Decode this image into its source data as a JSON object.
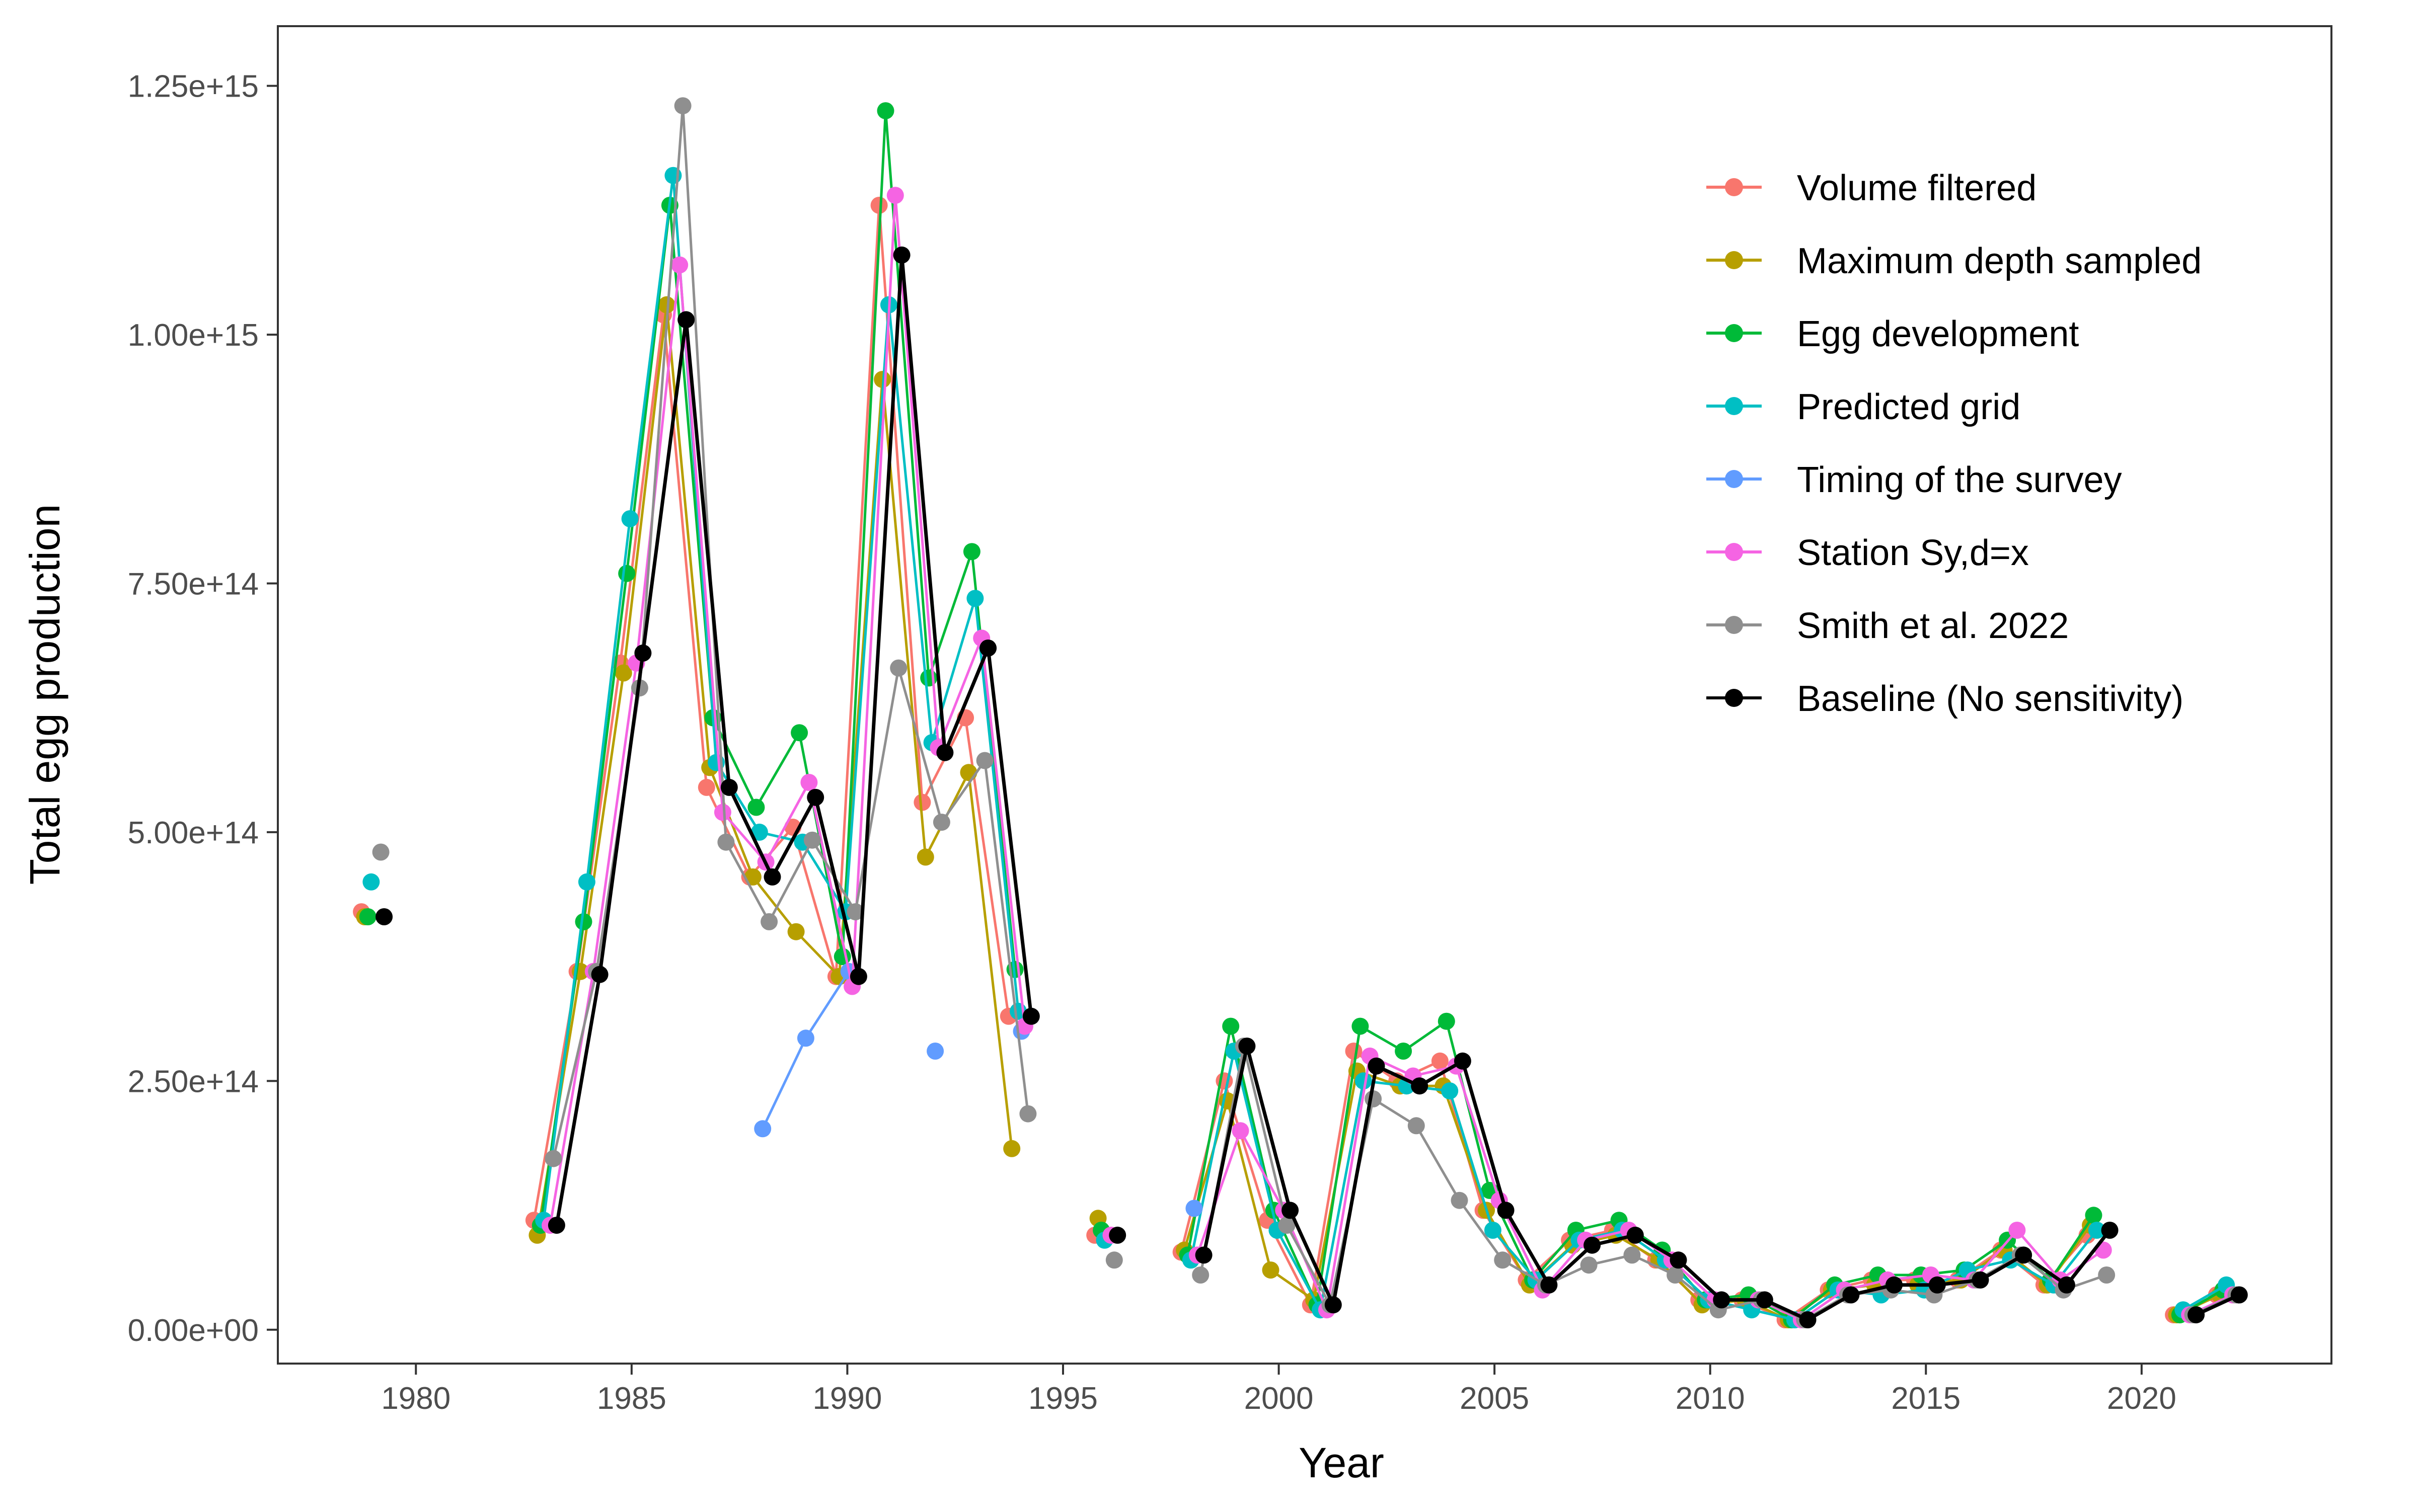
{
  "chart_data": {
    "type": "line",
    "title": "",
    "xlabel": "Year",
    "ylabel": "Total egg production",
    "xlim": [
      1976.8,
      2024.4
    ],
    "ylim": [
      -34000000000000.0,
      1310000000000000.0
    ],
    "x_ticks": [
      1980,
      1985,
      1990,
      1995,
      2000,
      2005,
      2010,
      2015,
      2020
    ],
    "x_tick_labels": [
      "1980",
      "1985",
      "1990",
      "1995",
      "2000",
      "2005",
      "2010",
      "2015",
      "2020"
    ],
    "y_ticks": [
      0,
      250000000000000.0,
      500000000000000.0,
      750000000000000.0,
      1000000000000000.0,
      1250000000000000.0
    ],
    "y_tick_labels": [
      "0.00e+00",
      "2.50e+14",
      "5.00e+14",
      "7.50e+14",
      "1.00e+15",
      "1.25e+15"
    ],
    "grid": false,
    "legend_position": "top-right",
    "years": [
      1979,
      1983,
      1984,
      1985,
      1986,
      1987,
      1988,
      1989,
      1990,
      1991,
      1992,
      1993,
      1994,
      1996,
      1998,
      1999,
      2000,
      2001,
      2002,
      2003,
      2004,
      2005,
      2006,
      2007,
      2008,
      2009,
      2010,
      2011,
      2012,
      2013,
      2014,
      2015,
      2016,
      2017,
      2018,
      2019,
      2021,
      2022
    ],
    "series": [
      {
        "name": "Volume filtered",
        "color": "#F8766D",
        "values": [
          420000000000000.0,
          110000000000000.0,
          360000000000000.0,
          670000000000000.0,
          1020000000000000.0,
          545000000000000.0,
          455000000000000.0,
          505000000000000.0,
          355000000000000.0,
          1130000000000000.0,
          530000000000000.0,
          615000000000000.0,
          315000000000000.0,
          95000000000000.0,
          78000000000000.0,
          250000000000000.0,
          110000000000000.0,
          25000000000000.0,
          280000000000000.0,
          250000000000000.0,
          270000000000000.0,
          120000000000000.0,
          50000000000000.0,
          90000000000000.0,
          100000000000000.0,
          70000000000000.0,
          30000000000000.0,
          30000000000000.0,
          10000000000000.0,
          40000000000000.0,
          50000000000000.0,
          50000000000000.0,
          50000000000000.0,
          80000000000000.0,
          45000000000000.0,
          95000000000000.0,
          15000000000000.0,
          35000000000000.0
        ]
      },
      {
        "name": "Maximum depth sampled",
        "color": "#B79F00",
        "values": [
          415000000000000.0,
          95000000000000.0,
          360000000000000.0,
          660000000000000.0,
          1030000000000000.0,
          565000000000000.0,
          455000000000000.0,
          400000000000000.0,
          355000000000000.0,
          955000000000000.0,
          475000000000000.0,
          560000000000000.0,
          182000000000000.0,
          112000000000000.0,
          80000000000000.0,
          230000000000000.0,
          60000000000000.0,
          30000000000000.0,
          260000000000000.0,
          245000000000000.0,
          245000000000000.0,
          120000000000000.0,
          45000000000000.0,
          85000000000000.0,
          95000000000000.0,
          70000000000000.0,
          25000000000000.0,
          30000000000000.0,
          10000000000000.0,
          40000000000000.0,
          45000000000000.0,
          45000000000000.0,
          50000000000000.0,
          80000000000000.0,
          45000000000000.0,
          105000000000000.0,
          15000000000000.0,
          35000000000000.0
        ]
      },
      {
        "name": "Egg development",
        "color": "#00BA38",
        "values": [
          415000000000000.0,
          105000000000000.0,
          410000000000000.0,
          760000000000000.0,
          1130000000000000.0,
          615000000000000.0,
          525000000000000.0,
          600000000000000.0,
          375000000000000.0,
          1225000000000000.0,
          655000000000000.0,
          782000000000000.0,
          362000000000000.0,
          100000000000000.0,
          75000000000000.0,
          305000000000000.0,
          120000000000000.0,
          25000000000000.0,
          305000000000000.0,
          280000000000000.0,
          310000000000000.0,
          140000000000000.0,
          50000000000000.0,
          100000000000000.0,
          110000000000000.0,
          80000000000000.0,
          30000000000000.0,
          35000000000000.0,
          10000000000000.0,
          45000000000000.0,
          55000000000000.0,
          55000000000000.0,
          60000000000000.0,
          90000000000000.0,
          50000000000000.0,
          115000000000000.0,
          15000000000000.0,
          40000000000000.0
        ]
      },
      {
        "name": "Predicted grid",
        "color": "#00BFC4",
        "values": [
          450000000000000.0,
          110000000000000.0,
          450000000000000.0,
          815000000000000.0,
          1160000000000000.0,
          570000000000000.0,
          500000000000000.0,
          490000000000000.0,
          420000000000000.0,
          1030000000000000.0,
          590000000000000.0,
          735000000000000.0,
          320000000000000.0,
          90000000000000.0,
          70000000000000.0,
          280000000000000.0,
          100000000000000.0,
          20000000000000.0,
          250000000000000.0,
          245000000000000.0,
          240000000000000.0,
          100000000000000.0,
          50000000000000.0,
          90000000000000.0,
          100000000000000.0,
          70000000000000.0,
          30000000000000.0,
          20000000000000.0,
          10000000000000.0,
          40000000000000.0,
          35000000000000.0,
          40000000000000.0,
          60000000000000.0,
          70000000000000.0,
          45000000000000.0,
          100000000000000.0,
          20000000000000.0,
          45000000000000.0
        ]
      },
      {
        "name": "Timing of the survey",
        "color": "#619CFF",
        "values": [
          null,
          null,
          null,
          null,
          null,
          null,
          202000000000000.0,
          293000000000000.0,
          360000000000000.0,
          null,
          280000000000000.0,
          null,
          300000000000000.0,
          null,
          122000000000000.0,
          null,
          null,
          null,
          null,
          null,
          null,
          null,
          null,
          null,
          null,
          null,
          null,
          null,
          null,
          null,
          null,
          null,
          null,
          null,
          null,
          null,
          null,
          null
        ]
      },
      {
        "name": "Station Sy,d=x",
        "color": "#F564E3",
        "values": [
          null,
          105000000000000.0,
          360000000000000.0,
          670000000000000.0,
          1070000000000000.0,
          520000000000000.0,
          470000000000000.0,
          550000000000000.0,
          345000000000000.0,
          1140000000000000.0,
          585000000000000.0,
          695000000000000.0,
          305000000000000.0,
          95000000000000.0,
          75000000000000.0,
          200000000000000.0,
          120000000000000.0,
          20000000000000.0,
          275000000000000.0,
          255000000000000.0,
          265000000000000.0,
          130000000000000.0,
          40000000000000.0,
          90000000000000.0,
          100000000000000.0,
          70000000000000.0,
          30000000000000.0,
          30000000000000.0,
          10000000000000.0,
          40000000000000.0,
          50000000000000.0,
          55000000000000.0,
          50000000000000.0,
          100000000000000.0,
          50000000000000.0,
          80000000000000.0,
          15000000000000.0,
          35000000000000.0
        ]
      },
      {
        "name": "Smith et al. 2022",
        "color": "#8F8F8F",
        "values": [
          480000000000000.0,
          172000000000000.0,
          360000000000000.0,
          645000000000000.0,
          1230000000000000.0,
          490000000000000.0,
          410000000000000.0,
          492000000000000.0,
          420000000000000.0,
          665000000000000.0,
          510000000000000.0,
          572000000000000.0,
          217000000000000.0,
          70000000000000.0,
          55000000000000.0,
          285000000000000.0,
          105000000000000.0,
          25000000000000.0,
          232000000000000.0,
          205000000000000.0,
          130000000000000.0,
          70000000000000.0,
          45000000000000.0,
          65000000000000.0,
          75000000000000.0,
          55000000000000.0,
          20000000000000.0,
          30000000000000.0,
          10000000000000.0,
          35000000000000.0,
          40000000000000.0,
          35000000000000.0,
          50000000000000.0,
          75000000000000.0,
          40000000000000.0,
          55000000000000.0,
          15000000000000.0,
          35000000000000.0
        ]
      },
      {
        "name": "Baseline (No sensitivity)",
        "color": "#000000",
        "values": [
          415000000000000.0,
          105000000000000.0,
          357000000000000.0,
          680000000000000.0,
          1015000000000000.0,
          545000000000000.0,
          455000000000000.0,
          535000000000000.0,
          355000000000000.0,
          1080000000000000.0,
          580000000000000.0,
          685000000000000.0,
          315000000000000.0,
          95000000000000.0,
          75000000000000.0,
          285000000000000.0,
          120000000000000.0,
          25000000000000.0,
          265000000000000.0,
          245000000000000.0,
          270000000000000.0,
          120000000000000.0,
          45000000000000.0,
          85000000000000.0,
          95000000000000.0,
          70000000000000.0,
          30000000000000.0,
          30000000000000.0,
          10000000000000.0,
          35000000000000.0,
          45000000000000.0,
          45000000000000.0,
          50000000000000.0,
          75000000000000.0,
          45000000000000.0,
          100000000000000.0,
          15000000000000.0,
          35000000000000.0
        ]
      }
    ]
  }
}
